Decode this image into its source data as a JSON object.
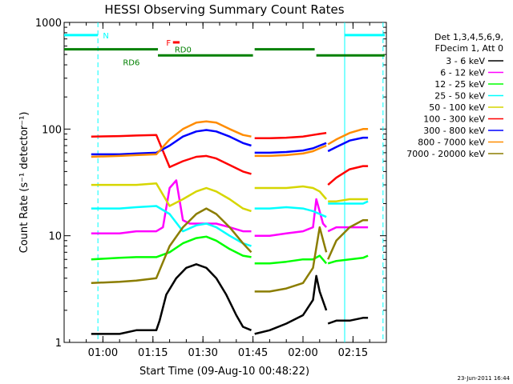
{
  "chart_data": {
    "type": "line",
    "title": "HESSI Observing Summary Count Rates",
    "xlabel": "Start Time (09-Aug-10 00:48:22)",
    "ylabel": "Count Rate (s⁻¹ detector⁻¹)",
    "y_scale": "log",
    "ylim": [
      1,
      1000
    ],
    "xlim": [
      "00:48:22",
      "02:25:00"
    ],
    "x_ticks": [
      "01:00",
      "01:15",
      "01:30",
      "01:45",
      "02:00",
      "02:15"
    ],
    "y_ticks": [
      "1",
      "10",
      "100",
      "1000"
    ],
    "grid": false,
    "legend_position": "right",
    "legend_header": [
      "Det 1,3,4,5,6,9,",
      "FDecim 1, Att 0"
    ],
    "footer": "23-Jun-2011 16:44",
    "annotations": {
      "N": "N",
      "F": "F",
      "RD0": "RD0",
      "RD6": "RD6"
    },
    "series": [
      {
        "name": "3 - 6 keV",
        "color": "#000000",
        "segments": [
          {
            "x": [
              "00:56:30",
              "01:05",
              "01:10",
              "01:16",
              "01:17",
              "01:19",
              "01:22",
              "01:25",
              "01:28",
              "01:31",
              "01:34",
              "01:37",
              "01:40",
              "01:42",
              "01:44:30"
            ],
            "y": [
              1.2,
              1.2,
              1.3,
              1.3,
              1.6,
              2.8,
              4.0,
              5.0,
              5.4,
              5.0,
              4.0,
              2.8,
              1.8,
              1.4,
              1.3
            ]
          },
          {
            "x": [
              "01:45:30",
              "01:50",
              "01:55",
              "02:00",
              "02:03",
              "02:04",
              "02:05",
              "02:07"
            ],
            "y": [
              1.2,
              1.3,
              1.5,
              1.8,
              2.5,
              4.2,
              3.0,
              2.0
            ]
          },
          {
            "x": [
              "02:07:30",
              "02:10",
              "02:14",
              "02:18",
              "02:19:30"
            ],
            "y": [
              1.5,
              1.6,
              1.6,
              1.7,
              1.7
            ]
          }
        ]
      },
      {
        "name": "6 - 12 keV",
        "color": "#ff00ff",
        "segments": [
          {
            "x": [
              "00:56:30",
              "01:05",
              "01:10",
              "01:16",
              "01:18",
              "01:20",
              "01:22",
              "01:24",
              "01:26",
              "01:30",
              "01:34",
              "01:38",
              "01:42",
              "01:44:30"
            ],
            "y": [
              10.5,
              10.5,
              11,
              11,
              12,
              28,
              33,
              14,
              13,
              13,
              13,
              12,
              11,
              11
            ]
          },
          {
            "x": [
              "01:45:30",
              "01:50",
              "01:55",
              "02:00",
              "02:03",
              "02:04",
              "02:06",
              "02:07"
            ],
            "y": [
              10,
              10,
              10.5,
              11,
              12,
              22,
              13,
              12
            ]
          },
          {
            "x": [
              "02:07:30",
              "02:10",
              "02:14",
              "02:18",
              "02:19:30"
            ],
            "y": [
              11,
              12,
              12,
              12,
              12
            ]
          }
        ]
      },
      {
        "name": "12 - 25 keV",
        "color": "#00ff00",
        "segments": [
          {
            "x": [
              "00:56:30",
              "01:05",
              "01:10",
              "01:16",
              "01:20",
              "01:24",
              "01:28",
              "01:31",
              "01:34",
              "01:38",
              "01:42",
              "01:44:30"
            ],
            "y": [
              6,
              6.2,
              6.3,
              6.3,
              7,
              8.5,
              9.5,
              9.8,
              9,
              7.5,
              6.5,
              6.3
            ]
          },
          {
            "x": [
              "01:45:30",
              "01:50",
              "01:55",
              "02:00",
              "02:03",
              "02:05",
              "02:07"
            ],
            "y": [
              5.5,
              5.5,
              5.7,
              6,
              6,
              6.5,
              5.5
            ]
          },
          {
            "x": [
              "02:07:30",
              "02:10",
              "02:14",
              "02:18",
              "02:19:30"
            ],
            "y": [
              5.5,
              5.8,
              6,
              6.2,
              6.5
            ]
          }
        ]
      },
      {
        "name": "25 - 50 keV",
        "color": "#00ffff",
        "segments": [
          {
            "x": [
              "00:56:30",
              "01:05",
              "01:10",
              "01:16",
              "01:20",
              "01:24",
              "01:28",
              "01:31",
              "01:34",
              "01:38",
              "01:42",
              "01:44:30"
            ],
            "y": [
              18,
              18,
              18.5,
              19,
              16,
              11,
              12.5,
              13,
              12,
              10,
              8.5,
              8
            ]
          },
          {
            "x": [
              "01:45:30",
              "01:50",
              "01:55",
              "02:00",
              "02:03",
              "02:05",
              "02:07"
            ],
            "y": [
              18,
              18,
              18.5,
              18,
              17,
              16,
              15
            ]
          },
          {
            "x": [
              "02:07:30",
              "02:10",
              "02:14",
              "02:18",
              "02:19:30"
            ],
            "y": [
              20,
              20,
              20,
              20,
              21
            ]
          }
        ]
      },
      {
        "name": "50 - 100 keV",
        "color": "#d6d600",
        "segments": [
          {
            "x": [
              "00:56:30",
              "01:05",
              "01:10",
              "01:16",
              "01:20",
              "01:24",
              "01:28",
              "01:31",
              "01:34",
              "01:38",
              "01:42",
              "01:44:30"
            ],
            "y": [
              30,
              30,
              30,
              31,
              19,
              22,
              26,
              28,
              26,
              22,
              18,
              17
            ]
          },
          {
            "x": [
              "01:45:30",
              "01:50",
              "01:55",
              "02:00",
              "02:03",
              "02:05",
              "02:07"
            ],
            "y": [
              28,
              28,
              28,
              29,
              28,
              26,
              22
            ]
          },
          {
            "x": [
              "02:07:30",
              "02:10",
              "02:14",
              "02:18",
              "02:19:30"
            ],
            "y": [
              21,
              21,
              22,
              22,
              22
            ]
          }
        ]
      },
      {
        "name": "100 - 300 keV",
        "color": "#ff0000",
        "segments": [
          {
            "x": [
              "00:56:30",
              "01:05",
              "01:10",
              "01:16",
              "01:20",
              "01:24",
              "01:28",
              "01:31",
              "01:34",
              "01:38",
              "01:42",
              "01:44:30"
            ],
            "y": [
              85,
              86,
              87,
              88,
              44,
              50,
              55,
              56,
              53,
              46,
              40,
              38
            ]
          },
          {
            "x": [
              "01:45:30",
              "01:50",
              "01:55",
              "02:00",
              "02:03",
              "02:05",
              "02:07"
            ],
            "y": [
              82,
              82,
              83,
              85,
              88,
              90,
              92
            ]
          },
          {
            "x": [
              "02:07:30",
              "02:10",
              "02:14",
              "02:18",
              "02:19:30"
            ],
            "y": [
              30,
              35,
              42,
              45,
              45
            ]
          }
        ]
      },
      {
        "name": "300 - 800 keV",
        "color": "#0000ff",
        "segments": [
          {
            "x": [
              "00:56:30",
              "01:05",
              "01:10",
              "01:16",
              "01:20",
              "01:24",
              "01:28",
              "01:31",
              "01:34",
              "01:38",
              "01:42",
              "01:44:30"
            ],
            "y": [
              58,
              58,
              59,
              60,
              70,
              85,
              95,
              98,
              95,
              85,
              74,
              70
            ]
          },
          {
            "x": [
              "01:45:30",
              "01:50",
              "01:55",
              "02:00",
              "02:03",
              "02:05",
              "02:07"
            ],
            "y": [
              60,
              60,
              61,
              63,
              66,
              70,
              74
            ]
          },
          {
            "x": [
              "02:07:30",
              "02:10",
              "02:14",
              "02:18",
              "02:19:30"
            ],
            "y": [
              62,
              68,
              78,
              83,
              83
            ]
          }
        ]
      },
      {
        "name": "800 - 7000 keV",
        "color": "#ff8c00",
        "segments": [
          {
            "x": [
              "00:56:30",
              "01:05",
              "01:10",
              "01:16",
              "01:20",
              "01:24",
              "01:28",
              "01:31",
              "01:34",
              "01:38",
              "01:42",
              "01:44:30"
            ],
            "y": [
              55,
              56,
              57,
              58,
              80,
              100,
              115,
              118,
              115,
              100,
              88,
              85
            ]
          },
          {
            "x": [
              "01:45:30",
              "01:50",
              "01:55",
              "02:00",
              "02:03",
              "02:05",
              "02:07"
            ],
            "y": [
              56,
              56,
              57,
              59,
              62,
              66,
              70
            ]
          },
          {
            "x": [
              "02:07:30",
              "02:10",
              "02:14",
              "02:18",
              "02:19:30"
            ],
            "y": [
              72,
              80,
              92,
              100,
              100
            ]
          }
        ]
      },
      {
        "name": "7000 - 20000 keV",
        "color": "#8b7d00",
        "segments": [
          {
            "x": [
              "00:56:30",
              "01:05",
              "01:10",
              "01:16",
              "01:20",
              "01:24",
              "01:28",
              "01:31",
              "01:34",
              "01:38",
              "01:42",
              "01:44:30"
            ],
            "y": [
              3.6,
              3.7,
              3.8,
              4,
              8,
              12,
              16,
              18,
              16,
              12,
              8.5,
              7
            ]
          },
          {
            "x": [
              "01:45:30",
              "01:50",
              "01:55",
              "02:00",
              "02:03",
              "02:05",
              "02:07"
            ],
            "y": [
              3,
              3,
              3.2,
              3.6,
              5,
              12,
              7
            ]
          },
          {
            "x": [
              "02:07:30",
              "02:10",
              "02:14",
              "02:18",
              "02:19:30"
            ],
            "y": [
              6,
              9,
              12,
              14,
              14
            ]
          }
        ]
      }
    ],
    "state_bars": [
      {
        "label": "N",
        "color": "#00ffff",
        "y": 760,
        "segments": [
          [
            "00:48:22",
            "00:58:30"
          ]
        ]
      },
      {
        "label": "RD6",
        "color": "#008000",
        "y": 560,
        "segments": [
          [
            "00:48:22",
            "01:16:30"
          ]
        ]
      },
      {
        "label": "RD0",
        "color": "#008000",
        "y": 490,
        "segments": [
          [
            "01:16:30",
            "01:45:00"
          ],
          [
            "02:04:00",
            "02:24:30"
          ]
        ]
      },
      {
        "label": "",
        "color": "#008000",
        "y": 560,
        "segments": [
          [
            "01:45:30",
            "02:03:30"
          ]
        ]
      },
      {
        "label": "",
        "color": "#00ffff",
        "y": 760,
        "segments": [
          [
            "02:12:30",
            "02:24:30"
          ]
        ]
      },
      {
        "label": "F",
        "color": "#ff0000",
        "y": 650,
        "segments": [
          [
            "01:21:00",
            "01:23:00"
          ]
        ]
      }
    ],
    "vertical_lines": [
      {
        "x": "00:58:30",
        "color": "#00ffff",
        "style": "dashed"
      },
      {
        "x": "02:12:30",
        "color": "#00ffff",
        "style": "solid"
      },
      {
        "x": "02:24:00",
        "color": "#00ffff",
        "style": "dashed"
      }
    ]
  }
}
